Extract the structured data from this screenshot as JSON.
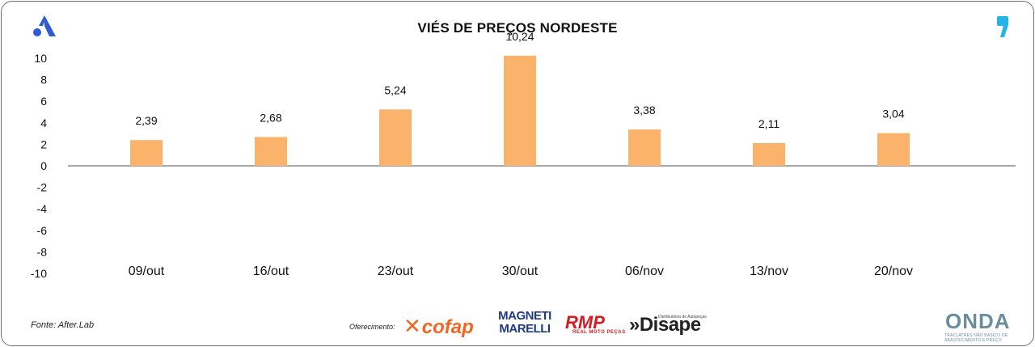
{
  "footer": {
    "source": "Fonte: After.Lab",
    "offer_label": "Oferecimento:"
  },
  "logos": {
    "left_icon": "triangle-a-logo-icon",
    "right_icon": "comma-quote-logo-icon",
    "accent_blue": "#2f5bd3",
    "accent_cyan": "#22b6e6"
  },
  "sponsors": {
    "cofap": "cofap",
    "magneti_1": "MAGNETI",
    "magneti_2": "MARELLI",
    "rmp": "RMP",
    "rmp_sub": "REAL MOTO PEÇAS",
    "disape": "»Disape",
    "disape_sub": "Distribuidora de Autopeças",
    "onda": "ONDA",
    "onda_sub": "TRACLATRES NÃO BASICO DE ABASTECIMENTO E PREÇO"
  },
  "colors": {
    "bar": "#fbb36b",
    "zero_line": "#8a8a8a",
    "text": "#111111"
  },
  "chart_data": {
    "type": "bar",
    "title": "VIÉS DE PREÇOS NORDESTE",
    "categories": [
      "09/out",
      "16/out",
      "23/out",
      "30/out",
      "06/nov",
      "13/nov",
      "20/nov"
    ],
    "values": [
      2.39,
      2.68,
      5.24,
      10.24,
      3.38,
      2.11,
      3.04
    ],
    "value_labels": [
      "2,39",
      "2,68",
      "5,24",
      "10,24",
      "3,38",
      "2,11",
      "3,04"
    ],
    "ylim": [
      -10,
      10
    ],
    "yticks": [
      10,
      8,
      6,
      4,
      2,
      0,
      -2,
      -4,
      -6,
      -8,
      -10
    ],
    "ytick_labels": [
      "10",
      "8",
      "6",
      "4",
      "2",
      "0",
      "-2",
      "-4",
      "-6",
      "-8",
      "-10"
    ],
    "xlabel": "",
    "ylabel": "",
    "grid": false,
    "legend": "none"
  }
}
